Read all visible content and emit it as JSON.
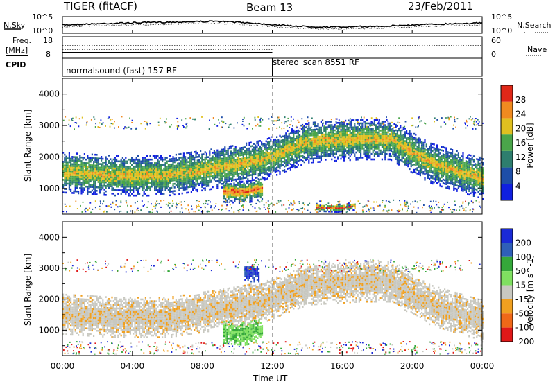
{
  "header": {
    "title": "TIGER (fitACF)",
    "beam": "Beam 13",
    "date": "23/Feb/2011"
  },
  "top_panels": {
    "nsky_label": "N.Sky",
    "nsearch_label": "N.Search",
    "nsky_ticks": [
      "10^5",
      "10^0"
    ],
    "nsky_ticks_right": [
      "10^5",
      "10^0"
    ],
    "freq_label": [
      "Freq.",
      "[MHz]"
    ],
    "freq_ticks": [
      "18",
      "8"
    ],
    "nave_label": "Nave",
    "nave_ticks": [
      "60",
      "0"
    ],
    "cpid_label": "CPID",
    "cpid_segments": [
      {
        "label": "normalsound (fast) 157 RF",
        "start_hour": 0
      },
      {
        "label": "stereo_scan 8551 RF",
        "start_hour": 12
      }
    ]
  },
  "chart_data": [
    {
      "type": "heatmap",
      "name": "power",
      "xlabel": "Time UT",
      "ylabel": "Slant Range [km]",
      "x_ticks": [
        "00:00",
        "04:00",
        "08:00",
        "12:00",
        "16:00",
        "20:00",
        "00:00"
      ],
      "xlim": [
        0,
        24
      ],
      "ylim": [
        180,
        4500
      ],
      "y_ticks": [
        1000,
        2000,
        3000,
        4000
      ],
      "colorbar": {
        "label": "Power [dB]",
        "ticks": [
          4,
          8,
          12,
          16,
          20,
          24,
          28
        ],
        "range": [
          0,
          32
        ],
        "colors": [
          "#1020e0",
          "#1e4ea8",
          "#2e7e6e",
          "#4aa54a",
          "#e0c020",
          "#f08a20",
          "#e02818"
        ]
      },
      "bands": [
        {
          "t": [
            0,
            3,
            6,
            9,
            11.5,
            14,
            17,
            18.7,
            21,
            24
          ],
          "r": [
            1550,
            1450,
            1450,
            1700,
            1950,
            2500,
            2600,
            2600,
            1850,
            1350
          ],
          "w": 650,
          "peak": 22
        },
        {
          "t": [
            9.2,
            10.4,
            11.4
          ],
          "r": [
            950,
            900,
            1050
          ],
          "w": 350,
          "peak": 28
        },
        {
          "t": [
            14.5,
            15.7,
            16.7
          ],
          "r": [
            430,
            400,
            470
          ],
          "w": 120,
          "peak": 30
        }
      ]
    },
    {
      "type": "heatmap",
      "name": "velocity",
      "xlabel": "Time UT",
      "ylabel": "Slant Range [km]",
      "x_ticks": [
        "00:00",
        "04:00",
        "08:00",
        "12:00",
        "16:00",
        "20:00",
        "00:00"
      ],
      "xlim": [
        0,
        24
      ],
      "ylim": [
        180,
        4500
      ],
      "y_ticks": [
        1000,
        2000,
        3000,
        4000
      ],
      "colorbar": {
        "label": "Velocity [m s^-1]",
        "ticks": [
          200,
          100,
          50,
          15,
          -15,
          -50,
          -100,
          -200
        ],
        "colors": [
          "#1a2ad6",
          "#2f5fb8",
          "#35a83a",
          "#7fe060",
          "#c8c8c0",
          "#f0a020",
          "#f06818",
          "#e01818"
        ]
      },
      "bands": [
        {
          "t": [
            0,
            3,
            6,
            9,
            11.5,
            14,
            17,
            18.7,
            21,
            24
          ],
          "r": [
            1550,
            1450,
            1450,
            1700,
            1950,
            2500,
            2600,
            2600,
            1850,
            1350
          ],
          "w": 650,
          "class": "gray"
        },
        {
          "t": [
            9.2,
            10.4,
            11.4
          ],
          "r": [
            950,
            900,
            1050
          ],
          "w": 350,
          "class": "green"
        },
        {
          "t": [
            10.4,
            11.2
          ],
          "r": [
            2850,
            2850
          ],
          "w": 250,
          "class": "blue"
        }
      ]
    }
  ]
}
